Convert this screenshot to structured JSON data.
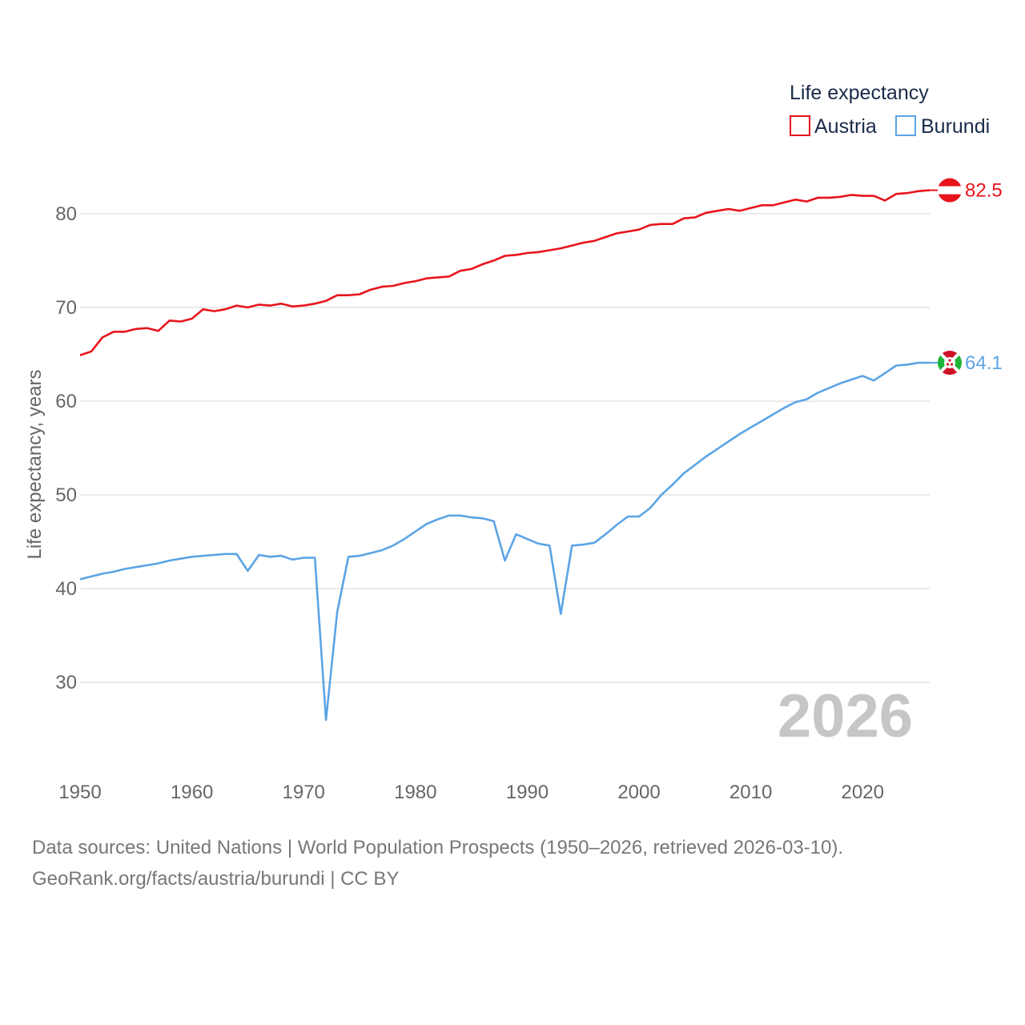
{
  "legend": {
    "title": "Life expectancy",
    "entries": [
      {
        "label": "Austria",
        "color": "#e8141c"
      },
      {
        "label": "Burundi",
        "color": "#5ba4e5"
      }
    ]
  },
  "current_year": "2026",
  "footer": {
    "source": "Data sources: United Nations | World Population Prospects (1950–2026, retrieved 2026-03-10).",
    "credit": "GeoRank.org/facts/austria/burundi | CC BY"
  },
  "chart_data": {
    "type": "line",
    "title": "Life expectancy",
    "xlabel": "",
    "ylabel": "Life expectancy, years",
    "xlim": [
      1950,
      2026
    ],
    "ylim": [
      22.5,
      84
    ],
    "x_ticks": [
      1950,
      1960,
      1970,
      1980,
      1990,
      2000,
      2010,
      2020
    ],
    "y_ticks": [
      30,
      40,
      50,
      60,
      70,
      80
    ],
    "grid": true,
    "legend_position": "top-right",
    "x": [
      1950,
      1951,
      1952,
      1953,
      1954,
      1955,
      1956,
      1957,
      1958,
      1959,
      1960,
      1961,
      1962,
      1963,
      1964,
      1965,
      1966,
      1967,
      1968,
      1969,
      1970,
      1971,
      1972,
      1973,
      1974,
      1975,
      1976,
      1977,
      1978,
      1979,
      1980,
      1981,
      1982,
      1983,
      1984,
      1985,
      1986,
      1987,
      1988,
      1989,
      1990,
      1991,
      1992,
      1993,
      1994,
      1995,
      1996,
      1997,
      1998,
      1999,
      2000,
      2001,
      2002,
      2003,
      2004,
      2005,
      2006,
      2007,
      2008,
      2009,
      2010,
      2011,
      2012,
      2013,
      2014,
      2015,
      2016,
      2017,
      2018,
      2019,
      2020,
      2021,
      2022,
      2023,
      2024,
      2025,
      2026
    ],
    "series": [
      {
        "name": "Austria",
        "color": "#e8141c",
        "end_label": "82.5",
        "values": [
          64.9,
          65.3,
          66.8,
          67.4,
          67.4,
          67.7,
          67.8,
          67.5,
          68.6,
          68.5,
          68.8,
          69.8,
          69.6,
          69.8,
          70.2,
          70.0,
          70.3,
          70.2,
          70.4,
          70.1,
          70.2,
          70.4,
          70.7,
          71.3,
          71.3,
          71.4,
          71.9,
          72.2,
          72.3,
          72.6,
          72.8,
          73.1,
          73.2,
          73.3,
          73.9,
          74.1,
          74.6,
          75.0,
          75.5,
          75.6,
          75.8,
          75.9,
          76.1,
          76.3,
          76.6,
          76.9,
          77.1,
          77.5,
          77.9,
          78.1,
          78.3,
          78.8,
          78.9,
          78.9,
          79.5,
          79.6,
          80.1,
          80.3,
          80.5,
          80.3,
          80.6,
          80.9,
          80.9,
          81.2,
          81.5,
          81.3,
          81.7,
          81.7,
          81.8,
          82.0,
          81.9,
          81.9,
          81.4,
          82.1,
          82.2,
          82.4,
          82.5
        ]
      },
      {
        "name": "Burundi",
        "color": "#5ba4e5",
        "end_label": "64.1",
        "values": [
          41.0,
          41.3,
          41.6,
          41.8,
          42.1,
          42.3,
          42.5,
          42.7,
          43.0,
          43.2,
          43.4,
          43.5,
          43.6,
          43.7,
          43.7,
          41.9,
          43.6,
          43.4,
          43.5,
          43.1,
          43.3,
          43.3,
          26.0,
          37.5,
          43.4,
          43.5,
          43.8,
          44.1,
          44.6,
          45.3,
          46.1,
          46.9,
          47.4,
          47.8,
          47.8,
          47.6,
          47.5,
          47.2,
          43.0,
          45.8,
          45.3,
          44.8,
          44.6,
          37.3,
          44.6,
          44.7,
          44.9,
          45.8,
          46.8,
          47.7,
          47.7,
          48.6,
          50.0,
          51.1,
          52.3,
          53.2,
          54.1,
          54.9,
          55.7,
          56.5,
          57.2,
          57.9,
          58.6,
          59.3,
          59.9,
          60.2,
          60.9,
          61.4,
          61.9,
          62.3,
          62.7,
          62.2,
          63.0,
          63.8,
          63.9,
          64.1,
          64.1
        ]
      }
    ]
  }
}
